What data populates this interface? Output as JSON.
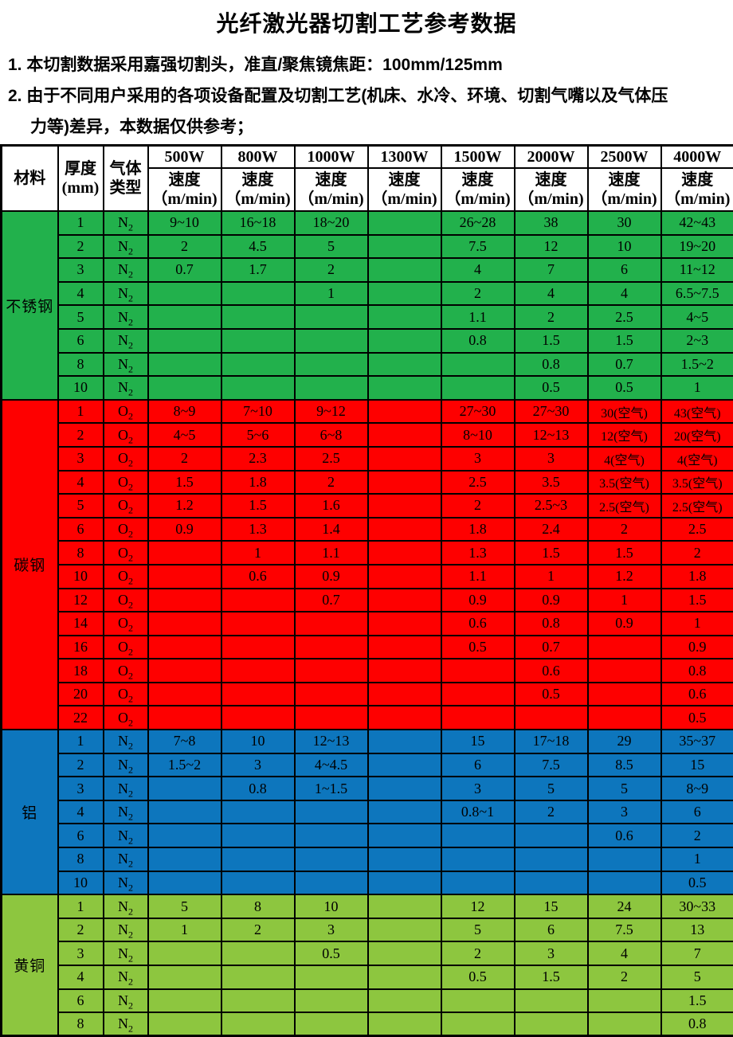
{
  "page": {
    "title": "光纤激光器切割工艺参考数据"
  },
  "notes": [
    {
      "lines": [
        "1. 本切割数据采用嘉强切割头，准直/聚焦镜焦距：100mm/125mm"
      ]
    },
    {
      "lines": [
        "2. 由于不同用户采用的各项设备配置及切割工艺(机床、水冷、环境、切割气嘴以及气体压",
        "力等)差异，本数据仅供参考；"
      ]
    }
  ],
  "table": {
    "header": {
      "material_label": "材料",
      "thickness_line1": "厚度",
      "thickness_line2": "(mm)",
      "gas_line1": "气体",
      "gas_line2": "类型",
      "powers": [
        "500W",
        "800W",
        "1000W",
        "1300W",
        "1500W",
        "2000W",
        "2500W",
        "4000W"
      ],
      "speed_line1": "速度",
      "speed_line2": "（m/min)"
    },
    "sections": [
      {
        "material": "不锈钢",
        "color": "#22B14C",
        "gas": "N2",
        "rows": [
          {
            "t": "1",
            "v": [
              "9~10",
              "16~18",
              "18~20",
              "",
              "26~28",
              "38",
              "30",
              "42~43"
            ]
          },
          {
            "t": "2",
            "v": [
              "2",
              "4.5",
              "5",
              "",
              "7.5",
              "12",
              "10",
              "19~20"
            ]
          },
          {
            "t": "3",
            "v": [
              "0.7",
              "1.7",
              "2",
              "",
              "4",
              "7",
              "6",
              "11~12"
            ]
          },
          {
            "t": "4",
            "v": [
              "",
              "",
              "1",
              "",
              "2",
              "4",
              "4",
              "6.5~7.5"
            ]
          },
          {
            "t": "5",
            "v": [
              "",
              "",
              "",
              "",
              "1.1",
              "2",
              "2.5",
              "4~5"
            ]
          },
          {
            "t": "6",
            "v": [
              "",
              "",
              "",
              "",
              "0.8",
              "1.5",
              "1.5",
              "2~3"
            ]
          },
          {
            "t": "8",
            "v": [
              "",
              "",
              "",
              "",
              "",
              "0.8",
              "0.7",
              "1.5~2"
            ]
          },
          {
            "t": "10",
            "v": [
              "",
              "",
              "",
              "",
              "",
              "0.5",
              "0.5",
              "1"
            ]
          }
        ]
      },
      {
        "material": "碳钢",
        "color": "#FE0000",
        "gas": "O2",
        "rows": [
          {
            "t": "1",
            "v": [
              "8~9",
              "7~10",
              "9~12",
              "",
              "27~30",
              "27~30",
              "30(空气)",
              "43(空气)"
            ]
          },
          {
            "t": "2",
            "v": [
              "4~5",
              "5~6",
              "6~8",
              "",
              "8~10",
              "12~13",
              "12(空气)",
              "20(空气)"
            ]
          },
          {
            "t": "3",
            "v": [
              "2",
              "2.3",
              "2.5",
              "",
              "3",
              "3",
              "4(空气)",
              "4(空气)"
            ]
          },
          {
            "t": "4",
            "v": [
              "1.5",
              "1.8",
              "2",
              "",
              "2.5",
              "3.5",
              "3.5(空气)",
              "3.5(空气)"
            ]
          },
          {
            "t": "5",
            "v": [
              "1.2",
              "1.5",
              "1.6",
              "",
              "2",
              "2.5~3",
              "2.5(空气)",
              "2.5(空气)"
            ]
          },
          {
            "t": "6",
            "v": [
              "0.9",
              "1.3",
              "1.4",
              "",
              "1.8",
              "2.4",
              "2",
              "2.5"
            ]
          },
          {
            "t": "8",
            "v": [
              "",
              "1",
              "1.1",
              "",
              "1.3",
              "1.5",
              "1.5",
              "2"
            ]
          },
          {
            "t": "10",
            "v": [
              "",
              "0.6",
              "0.9",
              "",
              "1.1",
              "1",
              "1.2",
              "1.8"
            ]
          },
          {
            "t": "12",
            "v": [
              "",
              "",
              "0.7",
              "",
              "0.9",
              "0.9",
              "1",
              "1.5"
            ]
          },
          {
            "t": "14",
            "v": [
              "",
              "",
              "",
              "",
              "0.6",
              "0.8",
              "0.9",
              "1"
            ]
          },
          {
            "t": "16",
            "v": [
              "",
              "",
              "",
              "",
              "0.5",
              "0.7",
              "",
              "0.9"
            ]
          },
          {
            "t": "18",
            "v": [
              "",
              "",
              "",
              "",
              "",
              "0.6",
              "",
              "0.8"
            ]
          },
          {
            "t": "20",
            "v": [
              "",
              "",
              "",
              "",
              "",
              "0.5",
              "",
              "0.6"
            ]
          },
          {
            "t": "22",
            "v": [
              "",
              "",
              "",
              "",
              "",
              "",
              "",
              "0.5"
            ]
          }
        ]
      },
      {
        "material": "铝",
        "color": "#0D76BD",
        "gas": "N2",
        "rows": [
          {
            "t": "1",
            "v": [
              "7~8",
              "10",
              "12~13",
              "",
              "15",
              "17~18",
              "29",
              "35~37"
            ]
          },
          {
            "t": "2",
            "v": [
              "1.5~2",
              "3",
              "4~4.5",
              "",
              "6",
              "7.5",
              "8.5",
              "15"
            ]
          },
          {
            "t": "3",
            "v": [
              "",
              "0.8",
              "1~1.5",
              "",
              "3",
              "5",
              "5",
              "8~9"
            ]
          },
          {
            "t": "4",
            "v": [
              "",
              "",
              "",
              "",
              "0.8~1",
              "2",
              "3",
              "6"
            ]
          },
          {
            "t": "6",
            "v": [
              "",
              "",
              "",
              "",
              "",
              "",
              "0.6",
              "2"
            ]
          },
          {
            "t": "8",
            "v": [
              "",
              "",
              "",
              "",
              "",
              "",
              "",
              "1"
            ]
          },
          {
            "t": "10",
            "v": [
              "",
              "",
              "",
              "",
              "",
              "",
              "",
              "0.5"
            ]
          }
        ]
      },
      {
        "material": "黄铜",
        "color": "#8DC63F",
        "gas": "N2",
        "rows": [
          {
            "t": "1",
            "v": [
              "5",
              "8",
              "10",
              "",
              "12",
              "15",
              "24",
              "30~33"
            ]
          },
          {
            "t": "2",
            "v": [
              "1",
              "2",
              "3",
              "",
              "5",
              "6",
              "7.5",
              "13"
            ]
          },
          {
            "t": "3",
            "v": [
              "",
              "",
              "0.5",
              "",
              "2",
              "3",
              "4",
              "7"
            ]
          },
          {
            "t": "4",
            "v": [
              "",
              "",
              "",
              "",
              "0.5",
              "1.5",
              "2",
              "5"
            ]
          },
          {
            "t": "6",
            "v": [
              "",
              "",
              "",
              "",
              "",
              "",
              "",
              "1.5"
            ]
          },
          {
            "t": "8",
            "v": [
              "",
              "",
              "",
              "",
              "",
              "",
              "",
              "0.8"
            ]
          }
        ]
      }
    ]
  }
}
